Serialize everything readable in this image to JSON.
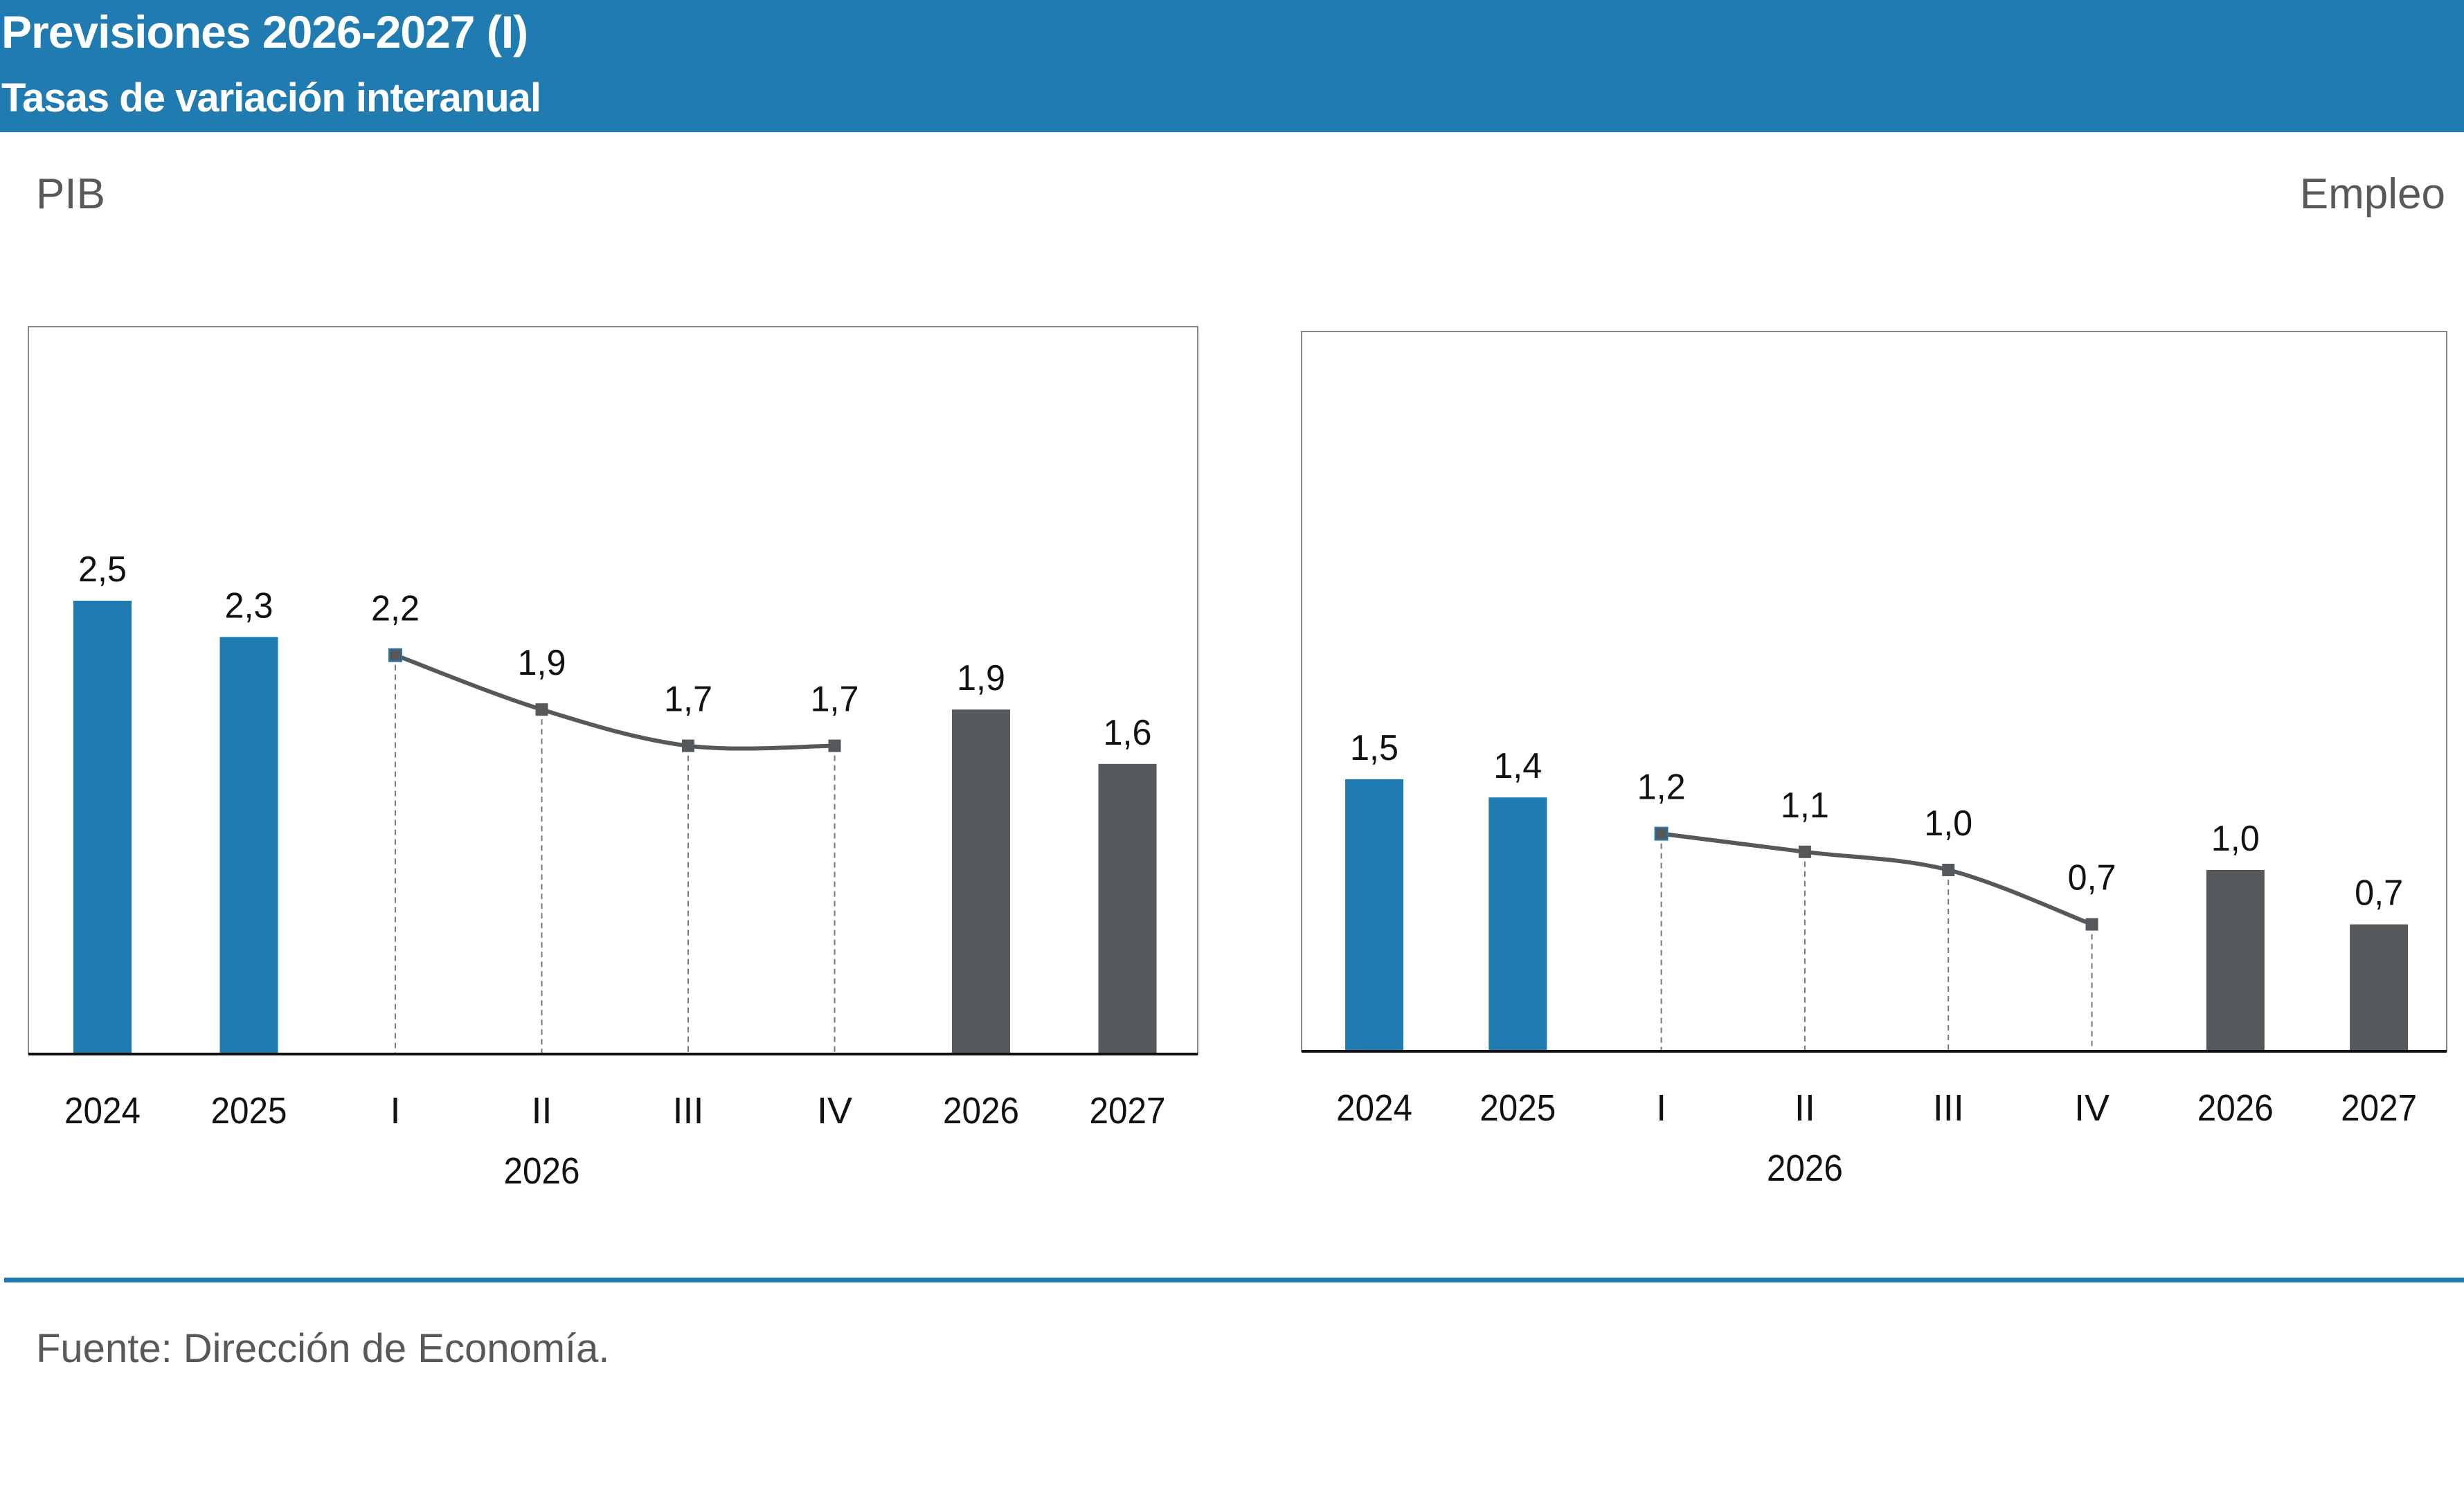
{
  "header": {
    "title": "Previsiones 2026-2027 (I)",
    "subtitle": "Tasas de variación interanual"
  },
  "source": "Fuente: Dirección de Economía.",
  "colors": {
    "header": "#1f7bb0",
    "annual_actual": "#1f7bb0",
    "annual_forecast": "#55595c",
    "quarterly_line": "#55595c"
  },
  "chart_data": [
    {
      "type": "bar",
      "title": "PIB",
      "categories": [
        "2024",
        "2025",
        "I",
        "II",
        "III",
        "IV",
        "2026",
        "2027"
      ],
      "group_label": "2026",
      "ylim": [
        0,
        4
      ],
      "grid": false,
      "bars": [
        {
          "category": "2024",
          "value": 2.5,
          "label": "2,5",
          "color": "#1f7bb0"
        },
        {
          "category": "2025",
          "value": 2.3,
          "label": "2,3",
          "color": "#1f7bb0"
        },
        {
          "category": "2026",
          "value": 1.9,
          "label": "1,9",
          "color": "#55595c"
        },
        {
          "category": "2027",
          "value": 1.6,
          "label": "1,6",
          "color": "#55595c"
        }
      ],
      "line": [
        {
          "category": "I",
          "value": 2.2,
          "label": "2,2"
        },
        {
          "category": "II",
          "value": 1.9,
          "label": "1,9"
        },
        {
          "category": "III",
          "value": 1.7,
          "label": "1,7"
        },
        {
          "category": "IV",
          "value": 1.7,
          "label": "1,7"
        }
      ]
    },
    {
      "type": "bar",
      "title": "Empleo",
      "categories": [
        "2024",
        "2025",
        "I",
        "II",
        "III",
        "IV",
        "2026",
        "2027"
      ],
      "group_label": "2026",
      "ylim": [
        0,
        4
      ],
      "grid": false,
      "bars": [
        {
          "category": "2024",
          "value": 1.5,
          "label": "1,5",
          "color": "#1f7bb0"
        },
        {
          "category": "2025",
          "value": 1.4,
          "label": "1,4",
          "color": "#1f7bb0"
        },
        {
          "category": "2026",
          "value": 1.0,
          "label": "1,0",
          "color": "#55595c"
        },
        {
          "category": "2027",
          "value": 0.7,
          "label": "0,7",
          "color": "#55595c"
        }
      ],
      "line": [
        {
          "category": "I",
          "value": 1.2,
          "label": "1,2"
        },
        {
          "category": "II",
          "value": 1.1,
          "label": "1,1"
        },
        {
          "category": "III",
          "value": 1.0,
          "label": "1,0"
        },
        {
          "category": "IV",
          "value": 0.7,
          "label": "0,7"
        }
      ]
    }
  ]
}
